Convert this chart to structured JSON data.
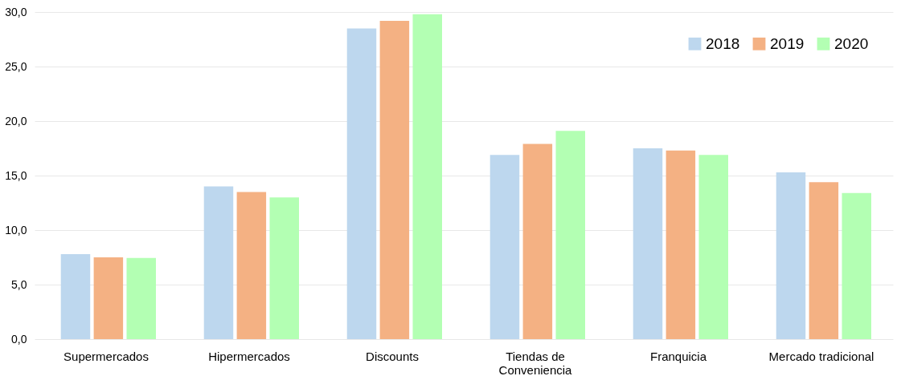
{
  "chart_data": {
    "type": "bar",
    "categories": [
      "Supermercados",
      "Hipermercados",
      "Discounts",
      "Tiendas de Conveniencia",
      "Franquicia",
      "Mercado tradicional"
    ],
    "series": [
      {
        "name": "2018",
        "color": "#bdd7ee",
        "values": [
          7.8,
          14.0,
          28.5,
          16.9,
          17.5,
          15.3
        ]
      },
      {
        "name": "2019",
        "color": "#f4b183",
        "values": [
          7.5,
          13.5,
          29.2,
          17.9,
          17.3,
          14.4
        ]
      },
      {
        "name": "2020",
        "color": "#b3ffb3",
        "values": [
          7.45,
          13.0,
          29.8,
          19.1,
          16.9,
          13.4
        ]
      }
    ],
    "ylim": [
      0,
      30
    ],
    "yticks": [
      {
        "value": 0,
        "label": "0,0"
      },
      {
        "value": 5,
        "label": "5,0"
      },
      {
        "value": 10,
        "label": "10,0"
      },
      {
        "value": 15,
        "label": "15,0"
      },
      {
        "value": 20,
        "label": "20,0"
      },
      {
        "value": 25,
        "label": "25,0"
      },
      {
        "value": 30,
        "label": "30,0"
      }
    ],
    "grid": "y",
    "legend": "top right"
  }
}
